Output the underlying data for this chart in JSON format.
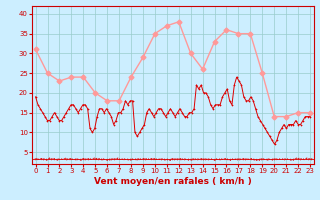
{
  "title": "",
  "xlabel": "Vent moyen/en rafales ( km/h )",
  "background_color": "#cceeff",
  "grid_color": "#99cccc",
  "mean_color": "#ff9999",
  "gust_color": "#dd0000",
  "ylim": [
    2,
    42
  ],
  "yticks": [
    5,
    10,
    15,
    20,
    25,
    30,
    35,
    40
  ],
  "xticks": [
    0,
    1,
    2,
    3,
    4,
    5,
    6,
    7,
    8,
    9,
    10,
    11,
    12,
    13,
    14,
    15,
    16,
    17,
    18,
    19,
    20,
    21,
    22,
    23
  ],
  "mean_x": [
    0,
    1,
    2,
    3,
    4,
    5,
    6,
    7,
    8,
    9,
    10,
    11,
    12,
    13,
    14,
    15,
    16,
    17,
    18,
    19,
    20,
    21,
    22,
    23
  ],
  "mean_y": [
    31,
    25,
    23,
    24,
    24,
    20,
    18,
    18,
    24,
    29,
    35,
    37,
    38,
    30,
    26,
    33,
    36,
    35,
    35,
    25,
    14,
    14,
    15,
    15
  ],
  "gust_y": [
    19,
    17,
    16,
    15,
    14,
    13,
    13,
    14,
    15,
    14,
    13,
    13,
    14,
    15,
    16,
    17,
    17,
    16,
    15,
    16,
    17,
    17,
    16,
    11,
    10,
    11,
    14,
    16,
    16,
    15,
    16,
    15,
    14,
    12,
    13,
    15,
    15,
    16,
    18,
    17,
    18,
    18,
    10,
    9,
    10,
    11,
    12,
    15,
    16,
    15,
    14,
    15,
    16,
    16,
    15,
    14,
    15,
    16,
    15,
    14,
    15,
    16,
    15,
    14,
    14,
    15,
    15,
    16,
    22,
    21,
    22,
    20,
    20,
    19,
    17,
    16,
    17,
    17,
    17,
    19,
    20,
    21,
    18,
    17,
    22,
    24,
    23,
    22,
    19,
    18,
    18,
    19,
    18,
    16,
    14,
    13,
    12,
    11,
    10,
    9,
    8,
    7,
    8,
    10,
    11,
    12,
    11,
    12,
    12,
    12,
    13,
    12,
    12,
    13,
    14,
    14,
    14
  ],
  "xlabel_color": "#cc0000",
  "tick_color": "#cc0000",
  "spine_color": "#cc0000"
}
